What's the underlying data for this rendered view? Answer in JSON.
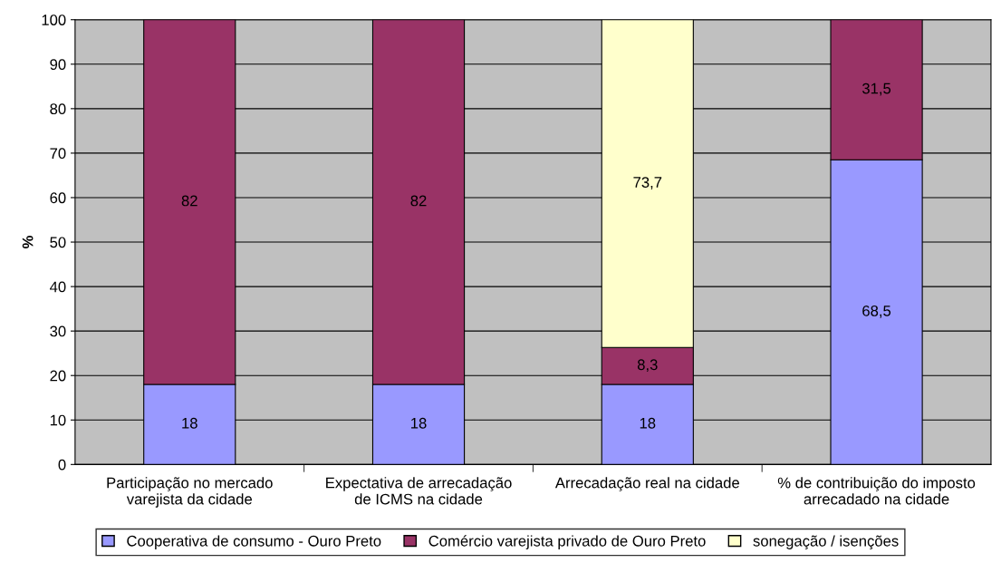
{
  "chart_data": {
    "type": "bar",
    "stacked": true,
    "ylabel": "%",
    "categories": [
      "Participação no mercado\nvarejista da cidade",
      "Expectativa de arrecadação\nde ICMS na cidade",
      "Arrecadação real na cidade",
      "% de contribuição do imposto\narrecadado na cidade"
    ],
    "series": [
      {
        "name": "Cooperativa de consumo - Ouro Preto",
        "color": "#9999ff",
        "values": [
          18,
          18,
          18,
          68.5
        ],
        "value_labels": [
          "18",
          "18",
          "18",
          "68,5"
        ]
      },
      {
        "name": "Comércio varejista privado de Ouro Preto",
        "color": "#993366",
        "values": [
          82,
          82,
          8.3,
          31.5
        ],
        "value_labels": [
          "82",
          "82",
          "8,3",
          "31,5"
        ]
      },
      {
        "name": "sonegação / isenções",
        "color": "#ffffcc",
        "values": [
          null,
          null,
          73.7,
          null
        ],
        "value_labels": [
          null,
          null,
          "73,7",
          null
        ]
      }
    ],
    "ylim": [
      0,
      100
    ],
    "yticks": [
      0,
      10,
      20,
      30,
      40,
      50,
      60,
      70,
      80,
      90,
      100
    ],
    "grid": "y",
    "legend": "bottom"
  }
}
